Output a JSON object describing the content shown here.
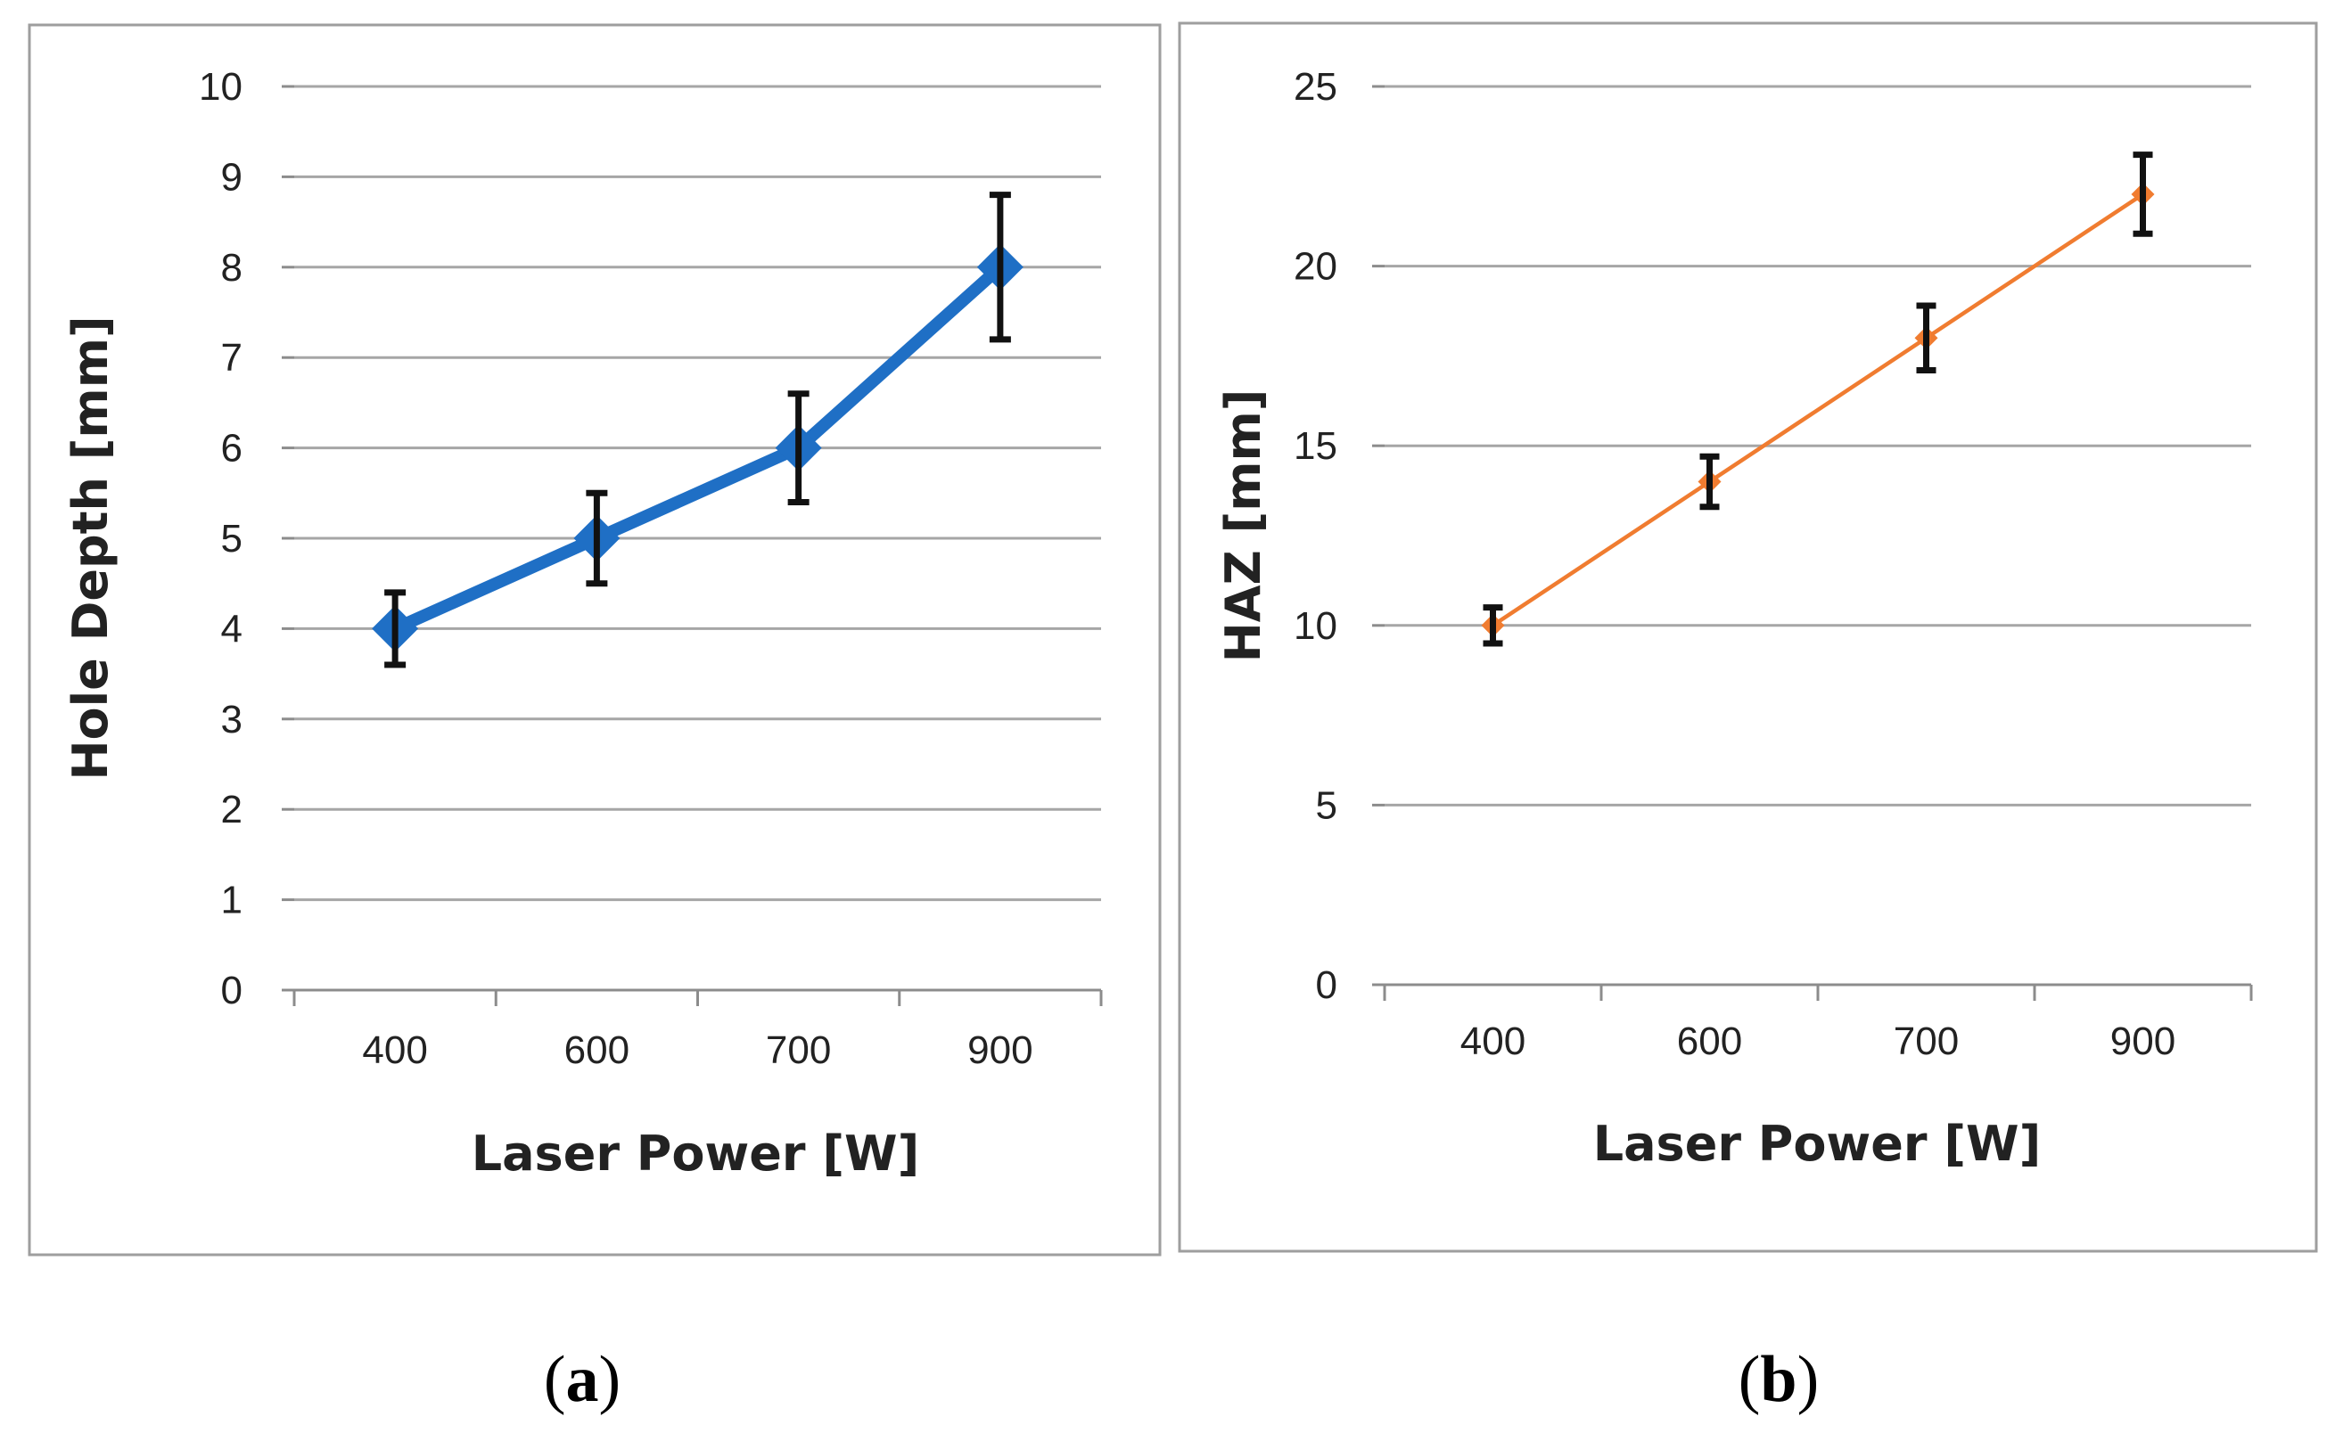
{
  "chart_data": [
    {
      "type": "line",
      "panel": "a",
      "caption_open": "(",
      "caption_letter": "a",
      "caption_close": ")",
      "categories": [
        "400",
        "600",
        "700",
        "900"
      ],
      "series": [
        {
          "name": "Hole Depth",
          "values": [
            4,
            5,
            6,
            8
          ],
          "error_low": [
            3.6,
            4.5,
            5.4,
            7.2
          ],
          "error_high": [
            4.4,
            5.5,
            6.6,
            8.8
          ],
          "color": "#1f6fc5",
          "marker": "diamond"
        }
      ],
      "xlabel": "Laser Power [W]",
      "ylabel": "Hole Depth [mm]",
      "ylim": [
        0,
        10
      ],
      "yticks": [
        "0",
        "1",
        "2",
        "3",
        "4",
        "5",
        "6",
        "7",
        "8",
        "9",
        "10"
      ],
      "grid": true
    },
    {
      "type": "line",
      "panel": "b",
      "caption_open": "(",
      "caption_letter": "b",
      "caption_close": ")",
      "categories": [
        "400",
        "600",
        "700",
        "900"
      ],
      "series": [
        {
          "name": "HAZ",
          "values": [
            10,
            14,
            18,
            22
          ],
          "error_low": [
            9.5,
            13.3,
            17.1,
            20.9
          ],
          "error_high": [
            10.5,
            14.7,
            18.9,
            23.1
          ],
          "color": "#f07c30",
          "marker": "diamond"
        }
      ],
      "xlabel": "Laser Power [W]",
      "ylabel": "HAZ [mm]",
      "ylim": [
        0,
        25
      ],
      "yticks": [
        "0",
        "5",
        "10",
        "15",
        "20",
        "25"
      ],
      "grid": true
    }
  ],
  "colors": {
    "frame": "#9e9e9e",
    "grid": "#a6a6a6",
    "axis": "#8c8c8c",
    "error_bar": "#111111"
  }
}
